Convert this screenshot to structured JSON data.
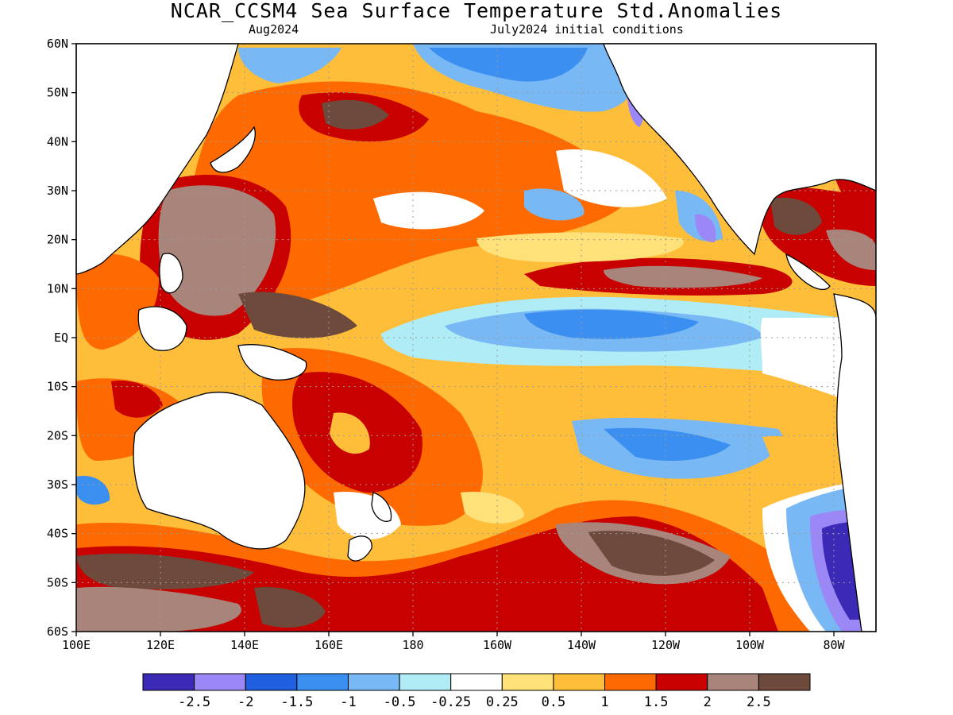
{
  "title": "NCAR_CCSM4 Sea Surface Temperature Std.Anomalies",
  "subtitle_left": "Aug2024",
  "subtitle_right": "July2024 initial conditions",
  "chart_data": {
    "type": "heatmap",
    "lat_ticks": [
      "60N",
      "50N",
      "40N",
      "30N",
      "20N",
      "10N",
      "EQ",
      "10S",
      "20S",
      "30S",
      "40S",
      "50S",
      "60S"
    ],
    "lon_ticks": [
      "100E",
      "120E",
      "140E",
      "160E",
      "180",
      "160W",
      "140W",
      "120W",
      "100W",
      "80W"
    ],
    "lat_range": [
      -60,
      60
    ],
    "lon_range": [
      100,
      290
    ],
    "grid": true,
    "colorbar": {
      "colors": [
        "#3a2ab5",
        "#9b87f5",
        "#1f5fe0",
        "#3a8ff0",
        "#78b8f5",
        "#b0ecf5",
        "#ffffff",
        "#ffe17a",
        "#ffbe3a",
        "#ff6a00",
        "#c80000",
        "#a8847a",
        "#6e4a3c"
      ],
      "labels": [
        "-2.5",
        "-2",
        "-1.5",
        "-1",
        "-0.5",
        "-0.25",
        "0.25",
        "0.5",
        "1",
        "1.5",
        "2",
        "2.5"
      ]
    }
  }
}
